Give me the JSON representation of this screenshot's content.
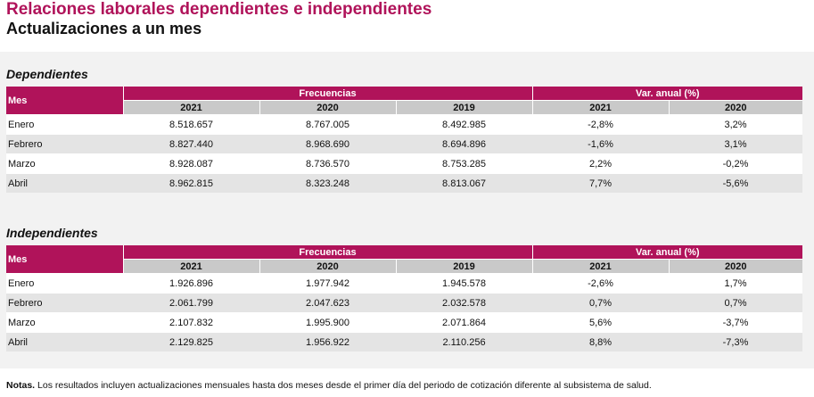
{
  "header": {
    "title": "Relaciones laborales dependientes e independientes",
    "subtitle": "Actualizaciones a un mes"
  },
  "tables": [
    {
      "title": "Dependientes",
      "mes": "Mes",
      "group1": "Frecuencias",
      "group2": "Var. anual (%)",
      "years1": [
        "2021",
        "2020",
        "2019"
      ],
      "years2": [
        "2021",
        "2020"
      ],
      "rows": [
        [
          "Enero",
          "8.518.657",
          "8.767.005",
          "8.492.985",
          "-2,8%",
          "3,2%"
        ],
        [
          "Febrero",
          "8.827.440",
          "8.968.690",
          "8.694.896",
          "-1,6%",
          "3,1%"
        ],
        [
          "Marzo",
          "8.928.087",
          "8.736.570",
          "8.753.285",
          "2,2%",
          "-0,2%"
        ],
        [
          "Abril",
          "8.962.815",
          "8.323.248",
          "8.813.067",
          "7,7%",
          "-5,6%"
        ]
      ]
    },
    {
      "title": "Independientes",
      "mes": "Mes",
      "group1": "Frecuencias",
      "group2": "Var. anual (%)",
      "years1": [
        "2021",
        "2020",
        "2019"
      ],
      "years2": [
        "2021",
        "2020"
      ],
      "rows": [
        [
          "Enero",
          "1.926.896",
          "1.977.942",
          "1.945.578",
          "-2,6%",
          "1,7%"
        ],
        [
          "Febrero",
          "2.061.799",
          "2.047.623",
          "2.032.578",
          "0,7%",
          "0,7%"
        ],
        [
          "Marzo",
          "2.107.832",
          "1.995.900",
          "2.071.864",
          "5,6%",
          "-3,7%"
        ],
        [
          "Abril",
          "2.129.825",
          "1.956.922",
          "2.110.256",
          "8,8%",
          "-7,3%"
        ]
      ]
    }
  ],
  "notes": {
    "label": "Notas.",
    "text": "Los resultados incluyen actualizaciones mensuales hasta dos meses desde el primer día del periodo de cotización diferente al subsistema de salud."
  }
}
